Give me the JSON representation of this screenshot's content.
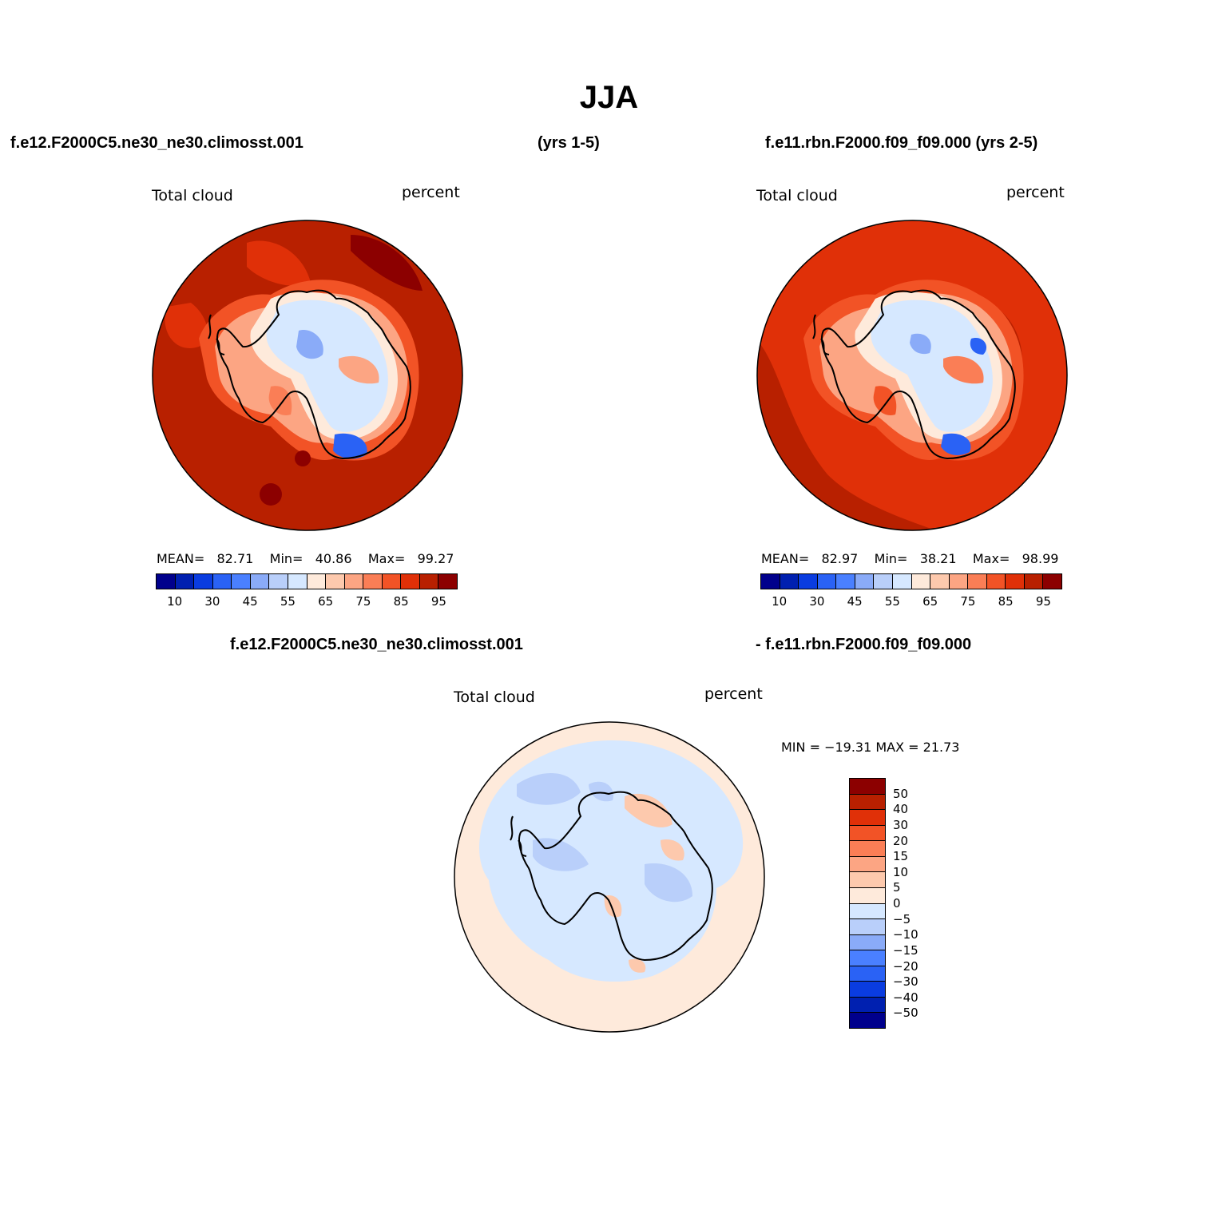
{
  "title": "JJA",
  "header": {
    "case1": "f.e12.F2000C5.ne30_ne30.climosst.001",
    "years1": "(yrs 1-5)",
    "case2_years": "f.e11.rbn.F2000.f09_f09.000 (yrs 2-5)",
    "diff_left": "f.e12.F2000C5.ne30_ne30.climosst.001",
    "diff_right": "- f.e11.rbn.F2000.f09_f09.000"
  },
  "panels": [
    {
      "variable": "Total cloud",
      "units": "percent",
      "mean_label": "MEAN=",
      "mean": "82.71",
      "min_label": "Min=",
      "min": "40.86",
      "max_label": "Max=",
      "max": "99.27"
    },
    {
      "variable": "Total cloud",
      "units": "percent",
      "mean_label": "MEAN=",
      "mean": "82.97",
      "min_label": "Min=",
      "min": "38.21",
      "max_label": "Max=",
      "max": "98.99"
    }
  ],
  "diff_panel": {
    "variable": "Total cloud",
    "units": "percent",
    "minmax": "MIN = −19.31 MAX =  21.73"
  },
  "colorbar_abs": {
    "colors": [
      "#00008c",
      "#0020b0",
      "#0a3ce0",
      "#2a62f5",
      "#4a80ff",
      "#8aabf8",
      "#b9cffa",
      "#d6e8ff",
      "#feeadb",
      "#fdc9ad",
      "#fca583",
      "#fa7e56",
      "#f25326",
      "#e03008",
      "#b82000",
      "#8c0000"
    ],
    "tick_labels": [
      "10",
      "30",
      "45",
      "55",
      "65",
      "75",
      "85",
      "95"
    ]
  },
  "colorbar_diff": {
    "colors": [
      "#8c0000",
      "#b82000",
      "#e03008",
      "#f25326",
      "#fa7e56",
      "#fca583",
      "#fdc9ad",
      "#feeadb",
      "#d6e8ff",
      "#b9cffa",
      "#8aabf8",
      "#4a80ff",
      "#2a62f5",
      "#0a3ce0",
      "#0020b0",
      "#00008c"
    ],
    "tick_labels": [
      "50",
      "40",
      "30",
      "20",
      "15",
      "10",
      "5",
      "0",
      "−5",
      "−10",
      "−15",
      "−20",
      "−30",
      "−40",
      "−50"
    ]
  }
}
